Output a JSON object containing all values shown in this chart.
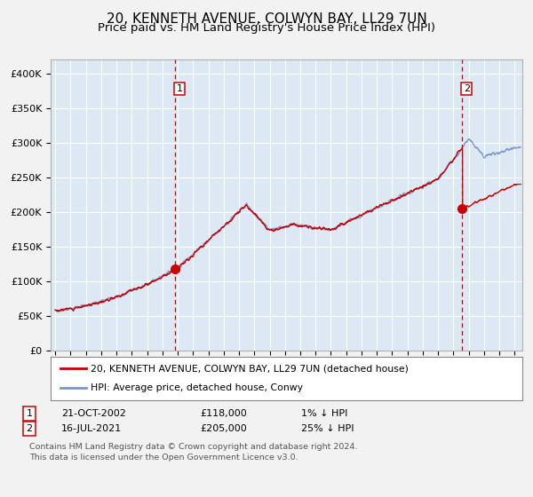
{
  "title": "20, KENNETH AVENUE, COLWYN BAY, LL29 7UN",
  "subtitle": "Price paid vs. HM Land Registry's House Price Index (HPI)",
  "title_fontsize": 11,
  "subtitle_fontsize": 9.5,
  "xlim_start": 1994.7,
  "xlim_end": 2025.5,
  "ylim_min": 0,
  "ylim_max": 420000,
  "yticks": [
    0,
    50000,
    100000,
    150000,
    200000,
    250000,
    300000,
    350000,
    400000
  ],
  "ytick_labels": [
    "£0",
    "£50K",
    "£100K",
    "£150K",
    "£200K",
    "£250K",
    "£300K",
    "£350K",
    "£400K"
  ],
  "xticks": [
    1995,
    1996,
    1997,
    1998,
    1999,
    2000,
    2001,
    2002,
    2003,
    2004,
    2005,
    2006,
    2007,
    2008,
    2009,
    2010,
    2011,
    2012,
    2013,
    2014,
    2015,
    2016,
    2017,
    2018,
    2019,
    2020,
    2021,
    2022,
    2023,
    2024,
    2025
  ],
  "fig_bg_color": "#f2f2f2",
  "plot_bg_color": "#dce9f5",
  "grid_color": "#ffffff",
  "hpi_line_color": "#7799cc",
  "price_line_color": "#cc0000",
  "marker_color": "#cc0000",
  "vline_color": "#cc0000",
  "sale1_x": 2002.81,
  "sale1_y": 118000,
  "sale1_label": "1",
  "sale1_date": "21-OCT-2002",
  "sale1_price": "£118,000",
  "sale1_hpi": "1% ↓ HPI",
  "sale2_x": 2021.54,
  "sale2_y": 205000,
  "sale2_label": "2",
  "sale2_date": "16-JUL-2021",
  "sale2_price": "£205,000",
  "sale2_hpi": "25% ↓ HPI",
  "legend_line1": "20, KENNETH AVENUE, COLWYN BAY, LL29 7UN (detached house)",
  "legend_line2": "HPI: Average price, detached house, Conwy",
  "footnote1": "Contains HM Land Registry data © Crown copyright and database right 2024.",
  "footnote2": "This data is licensed under the Open Government Licence v3.0."
}
